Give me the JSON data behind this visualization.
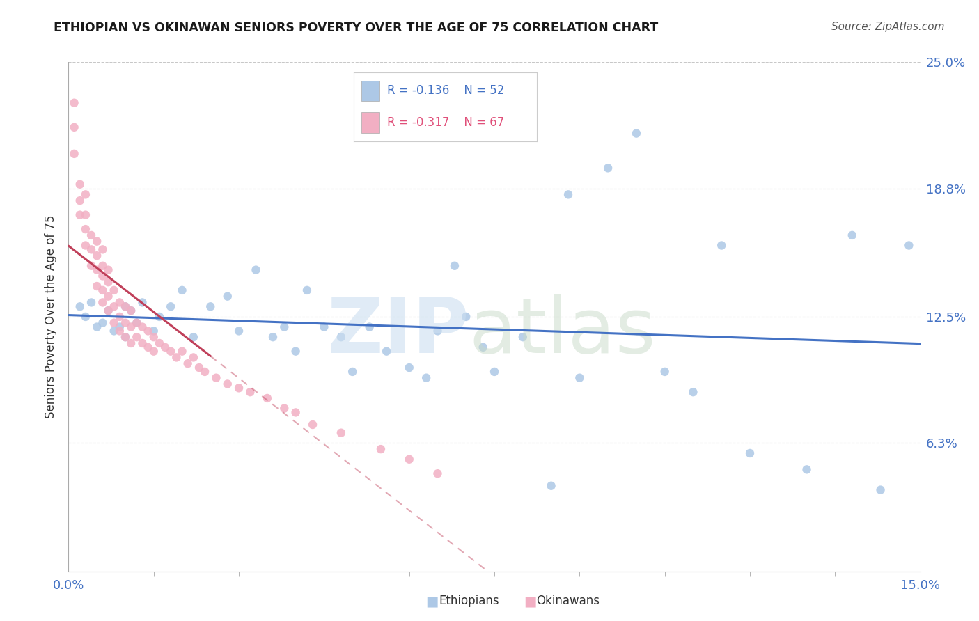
{
  "title": "ETHIOPIAN VS OKINAWAN SENIORS POVERTY OVER THE AGE OF 75 CORRELATION CHART",
  "source": "Source: ZipAtlas.com",
  "ylabel": "Seniors Poverty Over the Age of 75",
  "xlim": [
    0.0,
    0.15
  ],
  "ylim": [
    0.0,
    0.25
  ],
  "yticks_right": [
    0.063,
    0.125,
    0.188,
    0.25
  ],
  "ytick_right_labels": [
    "6.3%",
    "12.5%",
    "18.8%",
    "25.0%"
  ],
  "legend_r1": "R = -0.136",
  "legend_n1": "N = 52",
  "legend_r2": "R = -0.317",
  "legend_n2": "N = 67",
  "color_ethiopians": "#adc8e6",
  "color_okinawans": "#f2afc3",
  "color_trendline_ethiopians": "#4472c4",
  "color_trendline_okinawans": "#c0405a",
  "ethiopians_x": [
    0.002,
    0.003,
    0.004,
    0.005,
    0.006,
    0.007,
    0.008,
    0.009,
    0.01,
    0.01,
    0.011,
    0.012,
    0.013,
    0.015,
    0.016,
    0.018,
    0.02,
    0.022,
    0.025,
    0.028,
    0.03,
    0.033,
    0.036,
    0.038,
    0.04,
    0.042,
    0.045,
    0.048,
    0.05,
    0.053,
    0.056,
    0.06,
    0.063,
    0.065,
    0.068,
    0.07,
    0.073,
    0.075,
    0.08,
    0.085,
    0.088,
    0.09,
    0.095,
    0.1,
    0.105,
    0.11,
    0.115,
    0.12,
    0.13,
    0.138,
    0.143,
    0.148
  ],
  "ethiopians_y": [
    0.13,
    0.125,
    0.132,
    0.12,
    0.122,
    0.128,
    0.118,
    0.12,
    0.115,
    0.13,
    0.128,
    0.122,
    0.132,
    0.118,
    0.125,
    0.13,
    0.138,
    0.115,
    0.13,
    0.135,
    0.118,
    0.148,
    0.115,
    0.12,
    0.108,
    0.138,
    0.12,
    0.115,
    0.098,
    0.12,
    0.108,
    0.1,
    0.095,
    0.118,
    0.15,
    0.125,
    0.11,
    0.098,
    0.115,
    0.042,
    0.185,
    0.095,
    0.198,
    0.215,
    0.098,
    0.088,
    0.16,
    0.058,
    0.05,
    0.165,
    0.04,
    0.16
  ],
  "okinawans_x": [
    0.001,
    0.001,
    0.001,
    0.002,
    0.002,
    0.002,
    0.003,
    0.003,
    0.003,
    0.003,
    0.004,
    0.004,
    0.004,
    0.005,
    0.005,
    0.005,
    0.005,
    0.006,
    0.006,
    0.006,
    0.006,
    0.006,
    0.007,
    0.007,
    0.007,
    0.007,
    0.008,
    0.008,
    0.008,
    0.009,
    0.009,
    0.009,
    0.01,
    0.01,
    0.01,
    0.011,
    0.011,
    0.011,
    0.012,
    0.012,
    0.013,
    0.013,
    0.014,
    0.014,
    0.015,
    0.015,
    0.016,
    0.017,
    0.018,
    0.019,
    0.02,
    0.021,
    0.022,
    0.023,
    0.024,
    0.026,
    0.028,
    0.03,
    0.032,
    0.035,
    0.038,
    0.04,
    0.043,
    0.048,
    0.055,
    0.06,
    0.065
  ],
  "okinawans_y": [
    0.23,
    0.218,
    0.205,
    0.19,
    0.182,
    0.175,
    0.185,
    0.175,
    0.168,
    0.16,
    0.165,
    0.158,
    0.15,
    0.162,
    0.155,
    0.148,
    0.14,
    0.158,
    0.15,
    0.145,
    0.138,
    0.132,
    0.148,
    0.142,
    0.135,
    0.128,
    0.138,
    0.13,
    0.122,
    0.132,
    0.125,
    0.118,
    0.13,
    0.122,
    0.115,
    0.128,
    0.12,
    0.112,
    0.122,
    0.115,
    0.12,
    0.112,
    0.118,
    0.11,
    0.115,
    0.108,
    0.112,
    0.11,
    0.108,
    0.105,
    0.108,
    0.102,
    0.105,
    0.1,
    0.098,
    0.095,
    0.092,
    0.09,
    0.088,
    0.085,
    0.08,
    0.078,
    0.072,
    0.068,
    0.06,
    0.055,
    0.048
  ]
}
